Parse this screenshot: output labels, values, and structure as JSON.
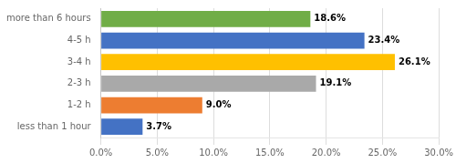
{
  "chart_data": {
    "type": "bar",
    "orientation": "horizontal",
    "categories": [
      "less than 1 hour",
      "1-2 h",
      "2-3 h",
      "3-4 h",
      "4-5 h",
      "more than 6 hours"
    ],
    "values": [
      3.7,
      9.0,
      19.1,
      26.1,
      23.4,
      18.6
    ],
    "value_labels": [
      "3.7%",
      "9.0%",
      "19.1%",
      "26.1%",
      "23.4%",
      "18.6%"
    ],
    "colors": [
      "#4472C4",
      "#ED7D31",
      "#A9A9A9",
      "#FFC000",
      "#4472C4",
      "#70AD47"
    ],
    "xlim": [
      0,
      30
    ],
    "xticks": [
      {
        "value": 0,
        "label": "0.0%"
      },
      {
        "value": 5,
        "label": "5.0%"
      },
      {
        "value": 10,
        "label": "10.0%"
      },
      {
        "value": 15,
        "label": "15.0%"
      },
      {
        "value": 20,
        "label": "20.0%"
      },
      {
        "value": 25,
        "label": "25.0%"
      },
      {
        "value": 30,
        "label": "30.0%"
      }
    ],
    "grid": true,
    "data_labels": true
  }
}
